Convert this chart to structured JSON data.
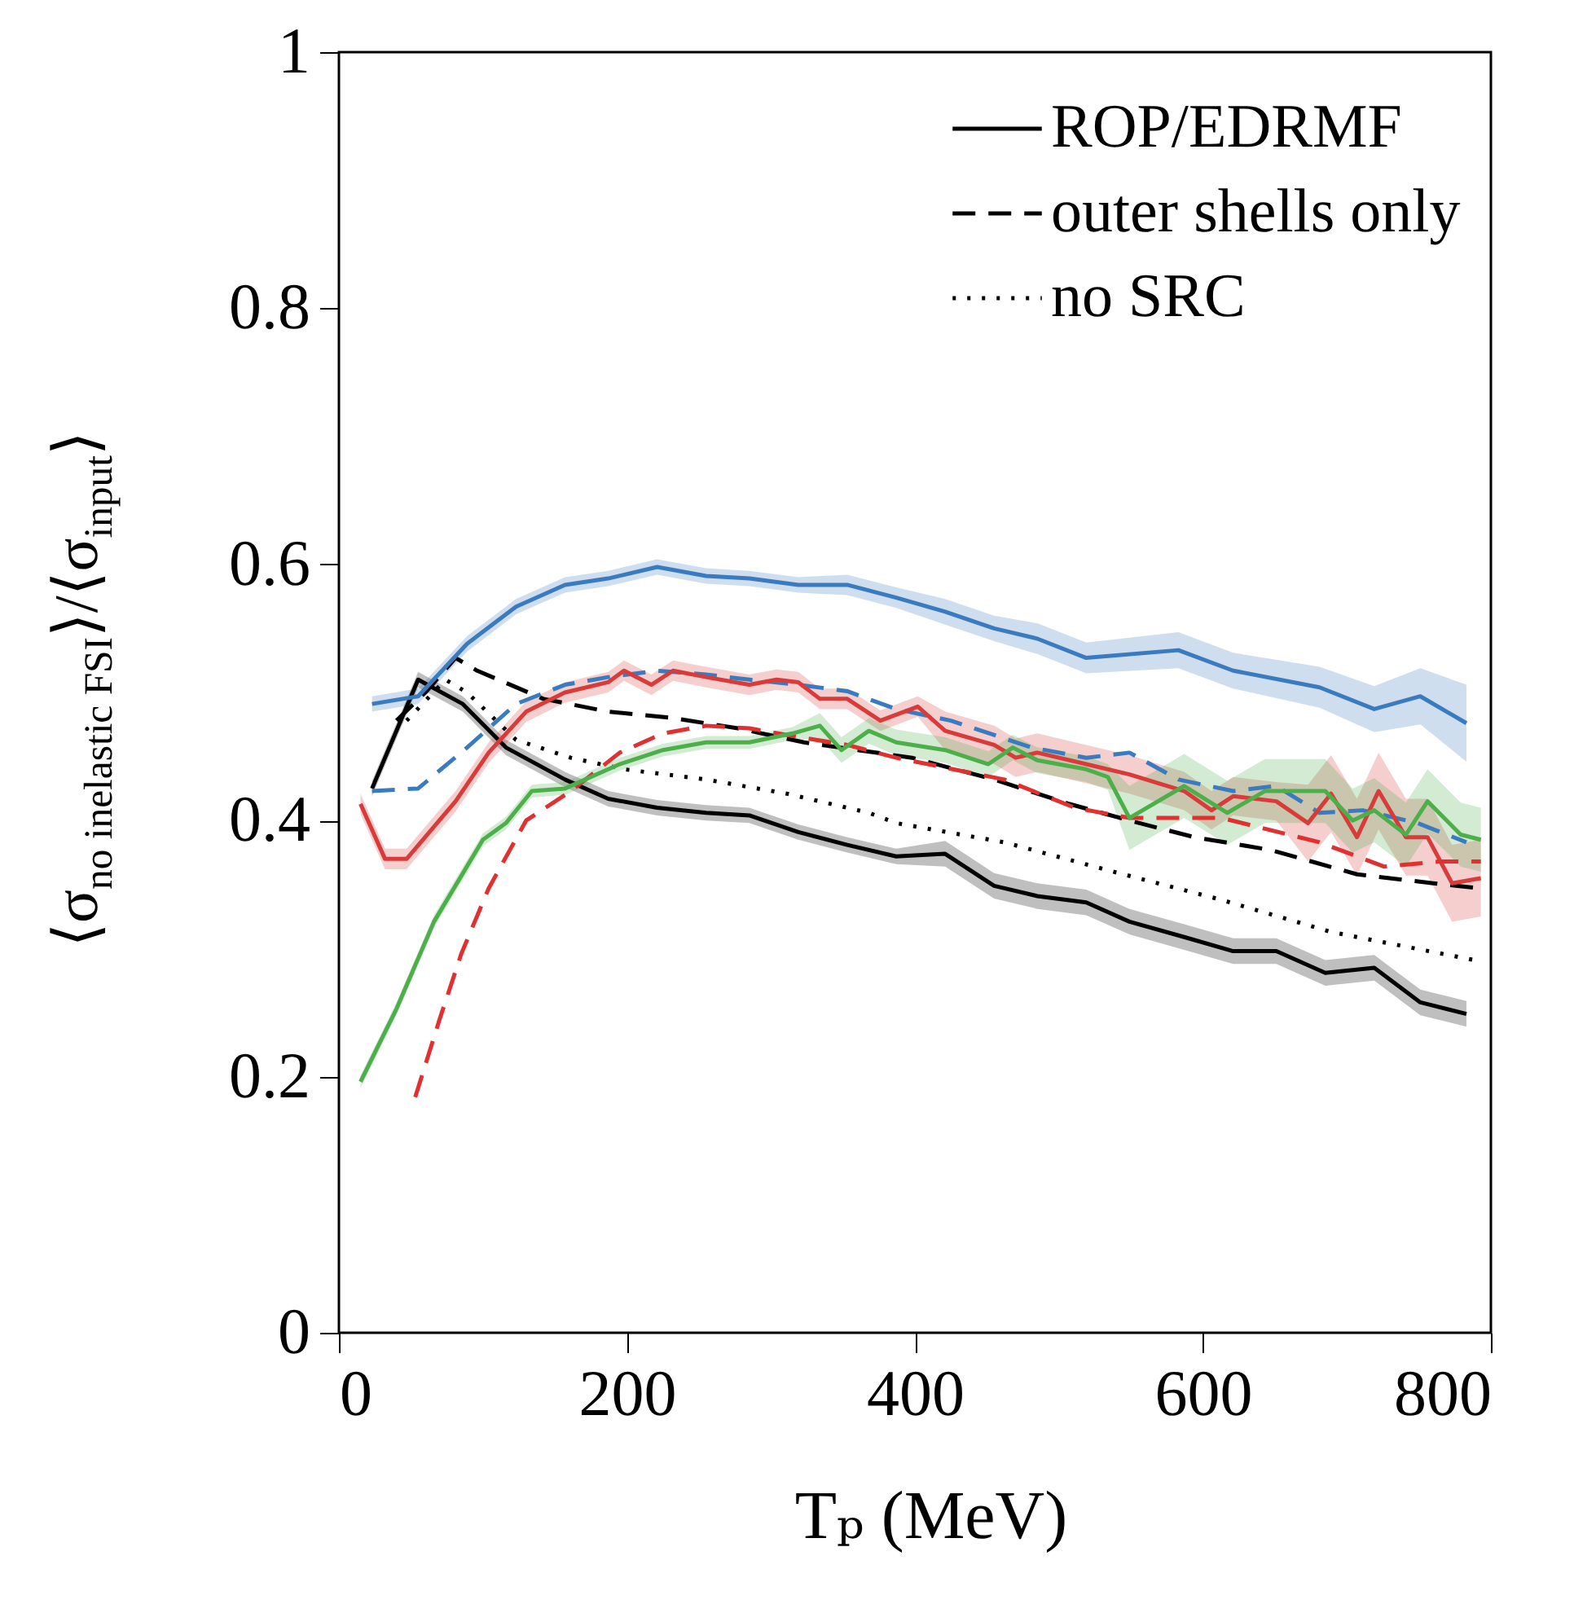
{
  "chart_data": {
    "type": "line",
    "xlabel": "Tₚ (MeV)",
    "ylabel": "⟨σ$_{no inelastic FSI}$⟩/⟨σ$_{input}$⟩",
    "xlim": [
      0,
      800
    ],
    "xticks": [
      0,
      200,
      400,
      600,
      800
    ],
    "ylim": [
      0,
      1
    ],
    "yticks": [
      0,
      0.2,
      0.4,
      0.6,
      0.8,
      1
    ],
    "legend": "top right",
    "series": [
      {
        "name": "ROP/EDRMF",
        "color": "#000000",
        "line_style": "solid",
        "x": [
          23,
          55,
          86,
          116,
          157,
          187,
          221,
          255,
          285,
          319,
          353,
          387,
          421,
          455,
          485,
          519,
          549,
          587,
          621,
          651,
          685,
          719,
          751,
          783
        ],
        "values": [
          0.425,
          0.51,
          0.491,
          0.457,
          0.432,
          0.417,
          0.41,
          0.406,
          0.404,
          0.391,
          0.381,
          0.372,
          0.374,
          0.349,
          0.341,
          0.336,
          0.321,
          0.309,
          0.298,
          0.298,
          0.281,
          0.285,
          0.258,
          0.249
        ],
        "lower": [
          0.419,
          0.504,
          0.485,
          0.451,
          0.426,
          0.411,
          0.404,
          0.4,
          0.398,
          0.385,
          0.375,
          0.366,
          0.364,
          0.339,
          0.331,
          0.326,
          0.311,
          0.299,
          0.288,
          0.288,
          0.271,
          0.275,
          0.248,
          0.239
        ],
        "upper": [
          0.431,
          0.516,
          0.497,
          0.463,
          0.438,
          0.423,
          0.416,
          0.412,
          0.41,
          0.397,
          0.387,
          0.378,
          0.384,
          0.359,
          0.351,
          0.346,
          0.331,
          0.319,
          0.308,
          0.308,
          0.291,
          0.295,
          0.268,
          0.259
        ]
      },
      {
        "name": "outer shells only",
        "color": "#000000",
        "line_style": "dashed",
        "x": [
          40,
          60,
          81,
          96,
          142,
          187,
          232,
          277,
          323,
          398,
          455,
          507,
          549,
          594,
          647,
          707,
          760,
          793
        ],
        "values": [
          0.478,
          0.5,
          0.527,
          0.517,
          0.495,
          0.485,
          0.48,
          0.472,
          0.461,
          0.449,
          0.432,
          0.413,
          0.4,
          0.387,
          0.377,
          0.358,
          0.351,
          0.347
        ]
      },
      {
        "name": "no SRC",
        "color": "#000000",
        "line_style": "dotted",
        "x": [
          47,
          74,
          89,
          123,
          161,
          198,
          255,
          311,
          368,
          387,
          462,
          538,
          613,
          689,
          793
        ],
        "values": [
          0.478,
          0.51,
          0.5,
          0.463,
          0.449,
          0.44,
          0.432,
          0.421,
          0.406,
          0.398,
          0.383,
          0.36,
          0.338,
          0.313,
          0.29
        ]
      },
      {
        "color": "#3a7bbf",
        "line_style": "solid",
        "x": [
          23,
          55,
          89,
          123,
          157,
          187,
          221,
          255,
          285,
          319,
          353,
          387,
          421,
          455,
          485,
          519,
          583,
          621,
          681,
          719,
          751,
          783
        ],
        "values": [
          0.491,
          0.497,
          0.538,
          0.567,
          0.584,
          0.589,
          0.598,
          0.591,
          0.589,
          0.584,
          0.584,
          0.574,
          0.563,
          0.55,
          0.542,
          0.527,
          0.533,
          0.517,
          0.504,
          0.487,
          0.497,
          0.476
        ],
        "lower": [
          0.485,
          0.491,
          0.532,
          0.561,
          0.578,
          0.583,
          0.592,
          0.585,
          0.583,
          0.578,
          0.576,
          0.566,
          0.553,
          0.54,
          0.53,
          0.515,
          0.519,
          0.503,
          0.488,
          0.469,
          0.475,
          0.446
        ],
        "upper": [
          0.497,
          0.503,
          0.544,
          0.573,
          0.59,
          0.595,
          0.604,
          0.597,
          0.595,
          0.59,
          0.592,
          0.582,
          0.573,
          0.56,
          0.554,
          0.539,
          0.547,
          0.531,
          0.52,
          0.505,
          0.519,
          0.506
        ]
      },
      {
        "color": "#3a7bbf",
        "line_style": "dashed",
        "x": [
          23,
          55,
          89,
          123,
          157,
          187,
          221,
          255,
          285,
          319,
          353,
          387,
          425,
          481,
          519,
          549,
          583,
          621,
          651,
          681,
          711,
          749,
          783
        ],
        "values": [
          0.423,
          0.425,
          0.457,
          0.491,
          0.506,
          0.512,
          0.517,
          0.514,
          0.51,
          0.506,
          0.501,
          0.487,
          0.478,
          0.457,
          0.449,
          0.453,
          0.432,
          0.423,
          0.427,
          0.406,
          0.408,
          0.398,
          0.383
        ]
      },
      {
        "color": "#d93a3a",
        "line_style": "solid",
        "x": [
          15,
          32,
          47,
          81,
          104,
          130,
          157,
          187,
          198,
          217,
          232,
          255,
          285,
          304,
          319,
          334,
          353,
          376,
          402,
          421,
          455,
          470,
          485,
          519,
          549,
          587,
          606,
          621,
          651,
          673,
          689,
          707,
          722,
          741,
          756,
          773,
          793
        ],
        "values": [
          0.413,
          0.37,
          0.37,
          0.415,
          0.453,
          0.485,
          0.5,
          0.508,
          0.517,
          0.506,
          0.517,
          0.512,
          0.506,
          0.51,
          0.508,
          0.495,
          0.495,
          0.478,
          0.489,
          0.47,
          0.459,
          0.449,
          0.453,
          0.444,
          0.436,
          0.423,
          0.408,
          0.419,
          0.415,
          0.398,
          0.421,
          0.387,
          0.423,
          0.387,
          0.387,
          0.351,
          0.355
        ],
        "lower": [
          0.405,
          0.362,
          0.362,
          0.407,
          0.445,
          0.477,
          0.492,
          0.5,
          0.509,
          0.498,
          0.509,
          0.504,
          0.498,
          0.502,
          0.5,
          0.487,
          0.487,
          0.47,
          0.481,
          0.455,
          0.444,
          0.434,
          0.438,
          0.429,
          0.421,
          0.408,
          0.393,
          0.404,
          0.4,
          0.368,
          0.391,
          0.357,
          0.393,
          0.357,
          0.357,
          0.321,
          0.325
        ],
        "upper": [
          0.421,
          0.378,
          0.378,
          0.423,
          0.461,
          0.493,
          0.508,
          0.516,
          0.525,
          0.514,
          0.525,
          0.52,
          0.514,
          0.518,
          0.516,
          0.503,
          0.503,
          0.486,
          0.497,
          0.485,
          0.474,
          0.464,
          0.468,
          0.459,
          0.451,
          0.438,
          0.423,
          0.434,
          0.43,
          0.428,
          0.451,
          0.417,
          0.453,
          0.417,
          0.417,
          0.381,
          0.385
        ]
      },
      {
        "color": "#e03030",
        "line_style": "dashed",
        "x": [
          53,
          70,
          85,
          104,
          130,
          161,
          195,
          225,
          255,
          285,
          315,
          353,
          387,
          462,
          511,
          549,
          613,
          681,
          726,
          764,
          793
        ],
        "values": [
          0.184,
          0.245,
          0.296,
          0.347,
          0.4,
          0.423,
          0.453,
          0.468,
          0.474,
          0.472,
          0.466,
          0.459,
          0.449,
          0.432,
          0.41,
          0.402,
          0.402,
          0.383,
          0.364,
          0.368,
          0.368
        ]
      },
      {
        "color": "#4daf4a",
        "line_style": "solid",
        "x": [
          15,
          40,
          66,
          100,
          116,
          134,
          157,
          195,
          225,
          255,
          285,
          315,
          334,
          349,
          368,
          387,
          421,
          451,
          468,
          485,
          519,
          534,
          549,
          587,
          617,
          643,
          685,
          704,
          719,
          741,
          756,
          779,
          793
        ],
        "values": [
          0.196,
          0.253,
          0.321,
          0.385,
          0.398,
          0.423,
          0.425,
          0.444,
          0.455,
          0.461,
          0.461,
          0.468,
          0.474,
          0.455,
          0.47,
          0.461,
          0.455,
          0.444,
          0.457,
          0.447,
          0.44,
          0.434,
          0.402,
          0.427,
          0.406,
          0.423,
          0.423,
          0.4,
          0.408,
          0.389,
          0.415,
          0.389,
          0.385
        ],
        "lower": [
          0.191,
          0.248,
          0.316,
          0.38,
          0.393,
          0.418,
          0.42,
          0.439,
          0.45,
          0.456,
          0.456,
          0.463,
          0.464,
          0.445,
          0.46,
          0.451,
          0.445,
          0.434,
          0.447,
          0.437,
          0.43,
          0.424,
          0.377,
          0.402,
          0.381,
          0.398,
          0.398,
          0.375,
          0.383,
          0.364,
          0.39,
          0.364,
          0.36
        ],
        "upper": [
          0.201,
          0.258,
          0.326,
          0.39,
          0.403,
          0.428,
          0.43,
          0.449,
          0.46,
          0.466,
          0.466,
          0.473,
          0.484,
          0.465,
          0.48,
          0.471,
          0.465,
          0.454,
          0.467,
          0.457,
          0.45,
          0.444,
          0.427,
          0.452,
          0.431,
          0.448,
          0.448,
          0.425,
          0.433,
          0.414,
          0.44,
          0.414,
          0.41
        ]
      }
    ]
  }
}
